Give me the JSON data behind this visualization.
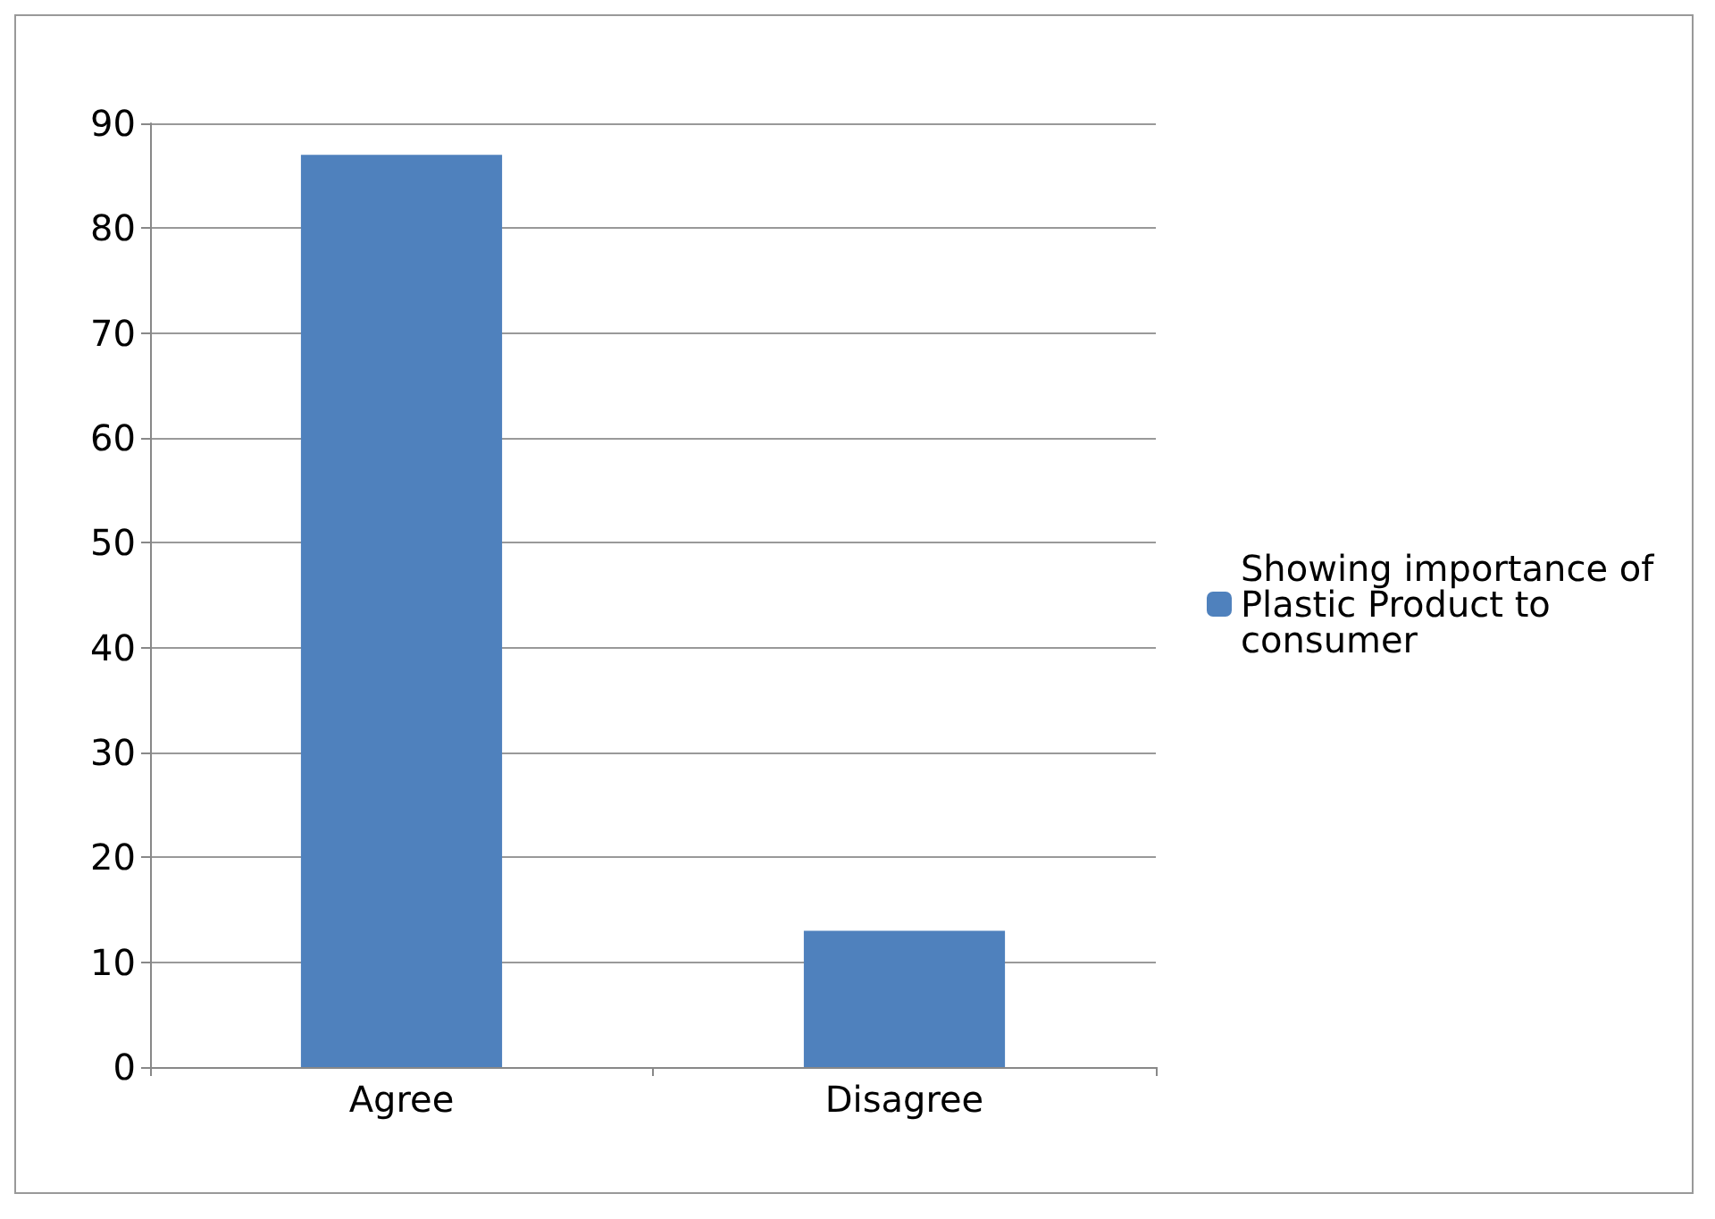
{
  "chart_data": {
    "type": "bar",
    "categories": [
      "Agree",
      "Disagree"
    ],
    "series": [
      {
        "name": "Showing importance of Plastic Product to consumer",
        "color": "#4f81bd",
        "values": [
          87,
          13
        ]
      }
    ],
    "ylim": [
      0,
      90
    ],
    "yticks": [
      0,
      10,
      20,
      30,
      40,
      50,
      60,
      70,
      80,
      90
    ],
    "grid": "y",
    "legend": "right"
  }
}
